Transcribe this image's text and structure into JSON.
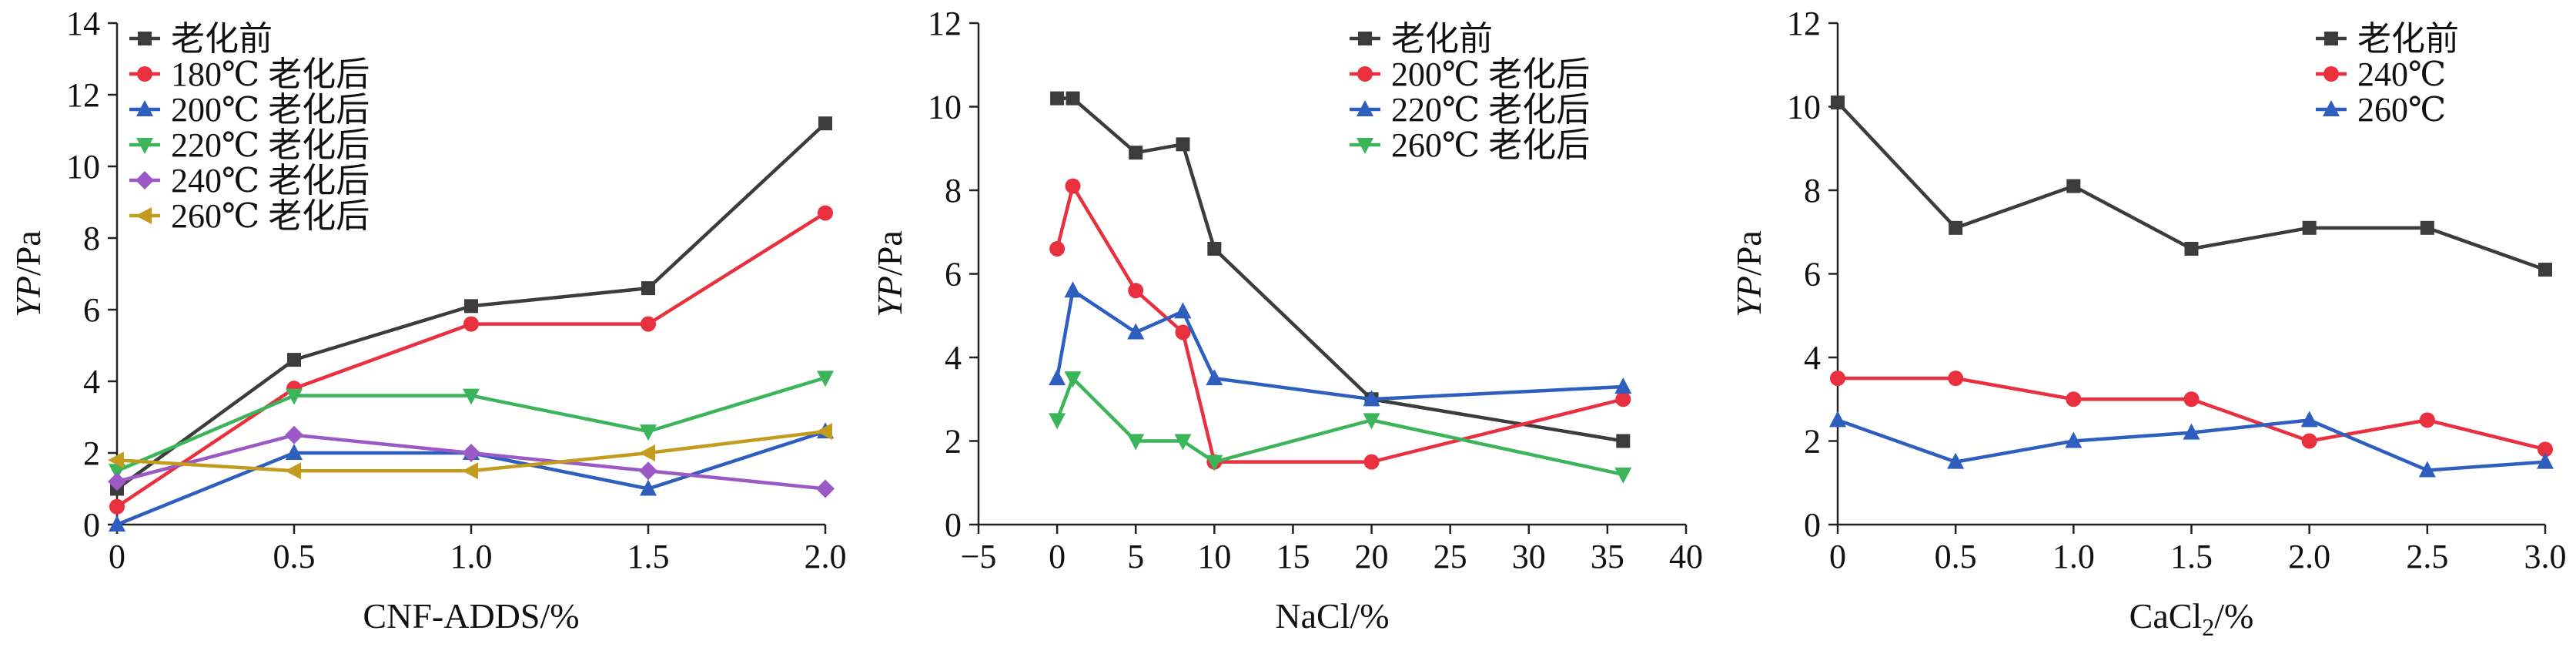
{
  "chart_data": [
    {
      "type": "line",
      "xlabel": "CNF-ADDS/%",
      "ylabel": {
        "italic": "YP",
        "rest": "/Pa"
      },
      "xlim": [
        0,
        2.0
      ],
      "ylim": [
        0,
        14
      ],
      "xticks": [
        0,
        0.5,
        1.0,
        1.5,
        2.0
      ],
      "xtick_labels": [
        "0",
        "0.5",
        "1.0",
        "1.5",
        "2.0"
      ],
      "yticks": [
        0,
        2,
        4,
        6,
        8,
        10,
        12,
        14
      ],
      "ytick_labels": [
        "0",
        "2",
        "4",
        "6",
        "8",
        "10",
        "12",
        "14"
      ],
      "legend_position": "top-left",
      "series": [
        {
          "name": "老化前",
          "color": "#3c3c3c",
          "marker": "square",
          "x": [
            0,
            0.5,
            1.0,
            1.5,
            2.0
          ],
          "y": [
            1.0,
            4.6,
            6.1,
            6.6,
            11.2
          ]
        },
        {
          "name": "180℃ 老化后",
          "color": "#e8303f",
          "marker": "circle",
          "x": [
            0,
            0.5,
            1.0,
            1.5,
            2.0
          ],
          "y": [
            0.5,
            3.8,
            5.6,
            5.6,
            8.7
          ]
        },
        {
          "name": "200℃ 老化后",
          "color": "#2e5fbf",
          "marker": "triangle-up",
          "x": [
            0,
            0.5,
            1.0,
            1.5,
            2.0
          ],
          "y": [
            0.0,
            2.0,
            2.0,
            1.0,
            2.6
          ]
        },
        {
          "name": "220℃ 老化后",
          "color": "#3cb55a",
          "marker": "triangle-down",
          "x": [
            0,
            0.5,
            1.0,
            1.5,
            2.0
          ],
          "y": [
            1.5,
            3.6,
            3.6,
            2.6,
            4.1
          ]
        },
        {
          "name": "240℃ 老化后",
          "color": "#9b59c6",
          "marker": "diamond",
          "x": [
            0,
            0.5,
            1.0,
            1.5,
            2.0
          ],
          "y": [
            1.2,
            2.5,
            2.0,
            1.5,
            1.0
          ]
        },
        {
          "name": "260℃ 老化后",
          "color": "#c39b1e",
          "marker": "triangle-left",
          "x": [
            0,
            0.5,
            1.0,
            1.5,
            2.0
          ],
          "y": [
            1.8,
            1.5,
            1.5,
            2.0,
            2.6
          ]
        }
      ]
    },
    {
      "type": "line",
      "xlabel": "NaCl/%",
      "ylabel": {
        "italic": "YP",
        "rest": "/Pa"
      },
      "xlim": [
        -5,
        40
      ],
      "ylim": [
        0,
        12
      ],
      "xticks": [
        -5,
        0,
        5,
        10,
        15,
        20,
        25,
        30,
        35,
        40
      ],
      "xtick_labels": [
        "−5",
        "0",
        "5",
        "10",
        "15",
        "20",
        "25",
        "30",
        "35",
        "40"
      ],
      "yticks": [
        0,
        2,
        4,
        6,
        8,
        10,
        12
      ],
      "ytick_labels": [
        "0",
        "2",
        "4",
        "6",
        "8",
        "10",
        "12"
      ],
      "legend_position": "top-right",
      "series": [
        {
          "name": "老化前",
          "color": "#3c3c3c",
          "marker": "square",
          "x": [
            0,
            1,
            5,
            8,
            10,
            20,
            36
          ],
          "y": [
            10.2,
            10.2,
            8.9,
            9.1,
            6.6,
            3.0,
            2.0
          ]
        },
        {
          "name": "200℃ 老化后",
          "color": "#e8303f",
          "marker": "circle",
          "x": [
            0,
            1,
            5,
            8,
            10,
            20,
            36
          ],
          "y": [
            6.6,
            8.1,
            5.6,
            4.6,
            1.5,
            1.5,
            3.0
          ]
        },
        {
          "name": "220℃ 老化后",
          "color": "#2e5fbf",
          "marker": "triangle-up",
          "x": [
            0,
            1,
            5,
            8,
            10,
            20,
            36
          ],
          "y": [
            3.5,
            5.6,
            4.6,
            5.1,
            3.5,
            3.0,
            3.3
          ]
        },
        {
          "name": "260℃ 老化后",
          "color": "#3cb55a",
          "marker": "triangle-down",
          "x": [
            0,
            1,
            5,
            8,
            10,
            20,
            36
          ],
          "y": [
            2.5,
            3.5,
            2.0,
            2.0,
            1.5,
            2.5,
            1.2
          ]
        }
      ]
    },
    {
      "type": "line",
      "xlabel": {
        "base": "CaCl",
        "sub": "2",
        "tail": "/%"
      },
      "ylabel": {
        "italic": "YP",
        "rest": "/Pa"
      },
      "xlim": [
        0,
        3.0
      ],
      "ylim": [
        0,
        12
      ],
      "xticks": [
        0,
        0.5,
        1.0,
        1.5,
        2.0,
        2.5,
        3.0
      ],
      "xtick_labels": [
        "0",
        "0.5",
        "1.0",
        "1.5",
        "2.0",
        "2.5",
        "3.0"
      ],
      "yticks": [
        0,
        2,
        4,
        6,
        8,
        10,
        12
      ],
      "ytick_labels": [
        "0",
        "2",
        "4",
        "6",
        "8",
        "10",
        "12"
      ],
      "legend_position": "top-right",
      "series": [
        {
          "name": "老化前",
          "color": "#3c3c3c",
          "marker": "square",
          "x": [
            0,
            0.5,
            1.0,
            1.5,
            2.0,
            2.5,
            3.0
          ],
          "y": [
            10.1,
            7.1,
            8.1,
            6.6,
            7.1,
            7.1,
            6.1
          ]
        },
        {
          "name": "240℃",
          "color": "#e8303f",
          "marker": "circle",
          "x": [
            0,
            0.5,
            1.0,
            1.5,
            2.0,
            2.5,
            3.0
          ],
          "y": [
            3.5,
            3.5,
            3.0,
            3.0,
            2.0,
            2.5,
            1.8
          ]
        },
        {
          "name": "260℃",
          "color": "#2e5fbf",
          "marker": "triangle-up",
          "x": [
            0,
            0.5,
            1.0,
            1.5,
            2.0,
            2.5,
            3.0
          ],
          "y": [
            2.5,
            1.5,
            2.0,
            2.2,
            2.5,
            1.3,
            1.5
          ]
        }
      ]
    }
  ]
}
